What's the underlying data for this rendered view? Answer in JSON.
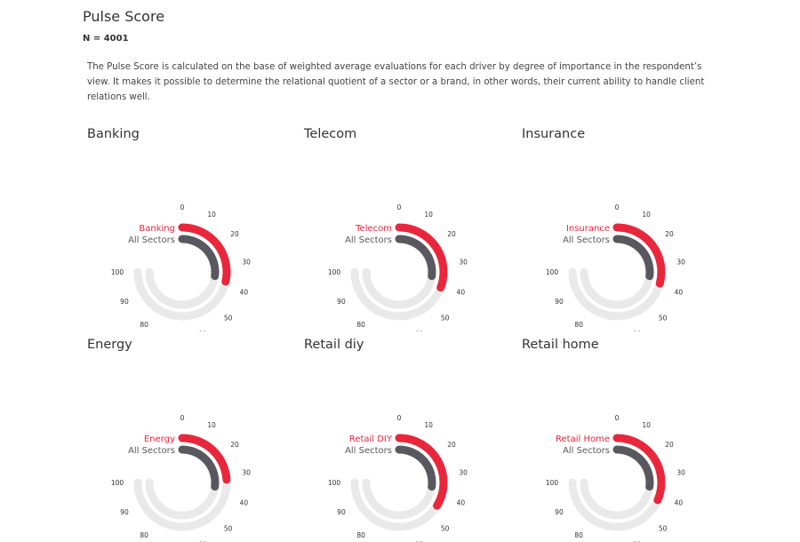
{
  "title": "Pulse Score",
  "n_label": "N = 4001",
  "description": "The Pulse Score is calculated on the base of weighted average evaluations for each driver by degree of importance in the respondent’s view. It makes it possible to determine the relational quotient of a sector or a brand, in other words, their current ability to handle client relations well.",
  "colors": {
    "sector": "#e8273c",
    "all_sectors": "#58585e",
    "track": "#e9e9e9",
    "line": "#e8425a"
  },
  "chart_data": [
    {
      "type": "radial-bar",
      "title": "Banking",
      "scale": [
        0,
        100
      ],
      "ticks": [
        0,
        10,
        20,
        30,
        40,
        50,
        60,
        70,
        80,
        90,
        100
      ],
      "series": [
        {
          "name": "Banking",
          "value": 38
        },
        {
          "name": "All Sectors",
          "value": 36
        }
      ]
    },
    {
      "type": "radial-bar",
      "title": "Telecom",
      "scale": [
        0,
        100
      ],
      "ticks": [
        0,
        10,
        20,
        30,
        40,
        50,
        60,
        70,
        80,
        90,
        100
      ],
      "series": [
        {
          "name": "Telecom",
          "value": 41
        },
        {
          "name": "All Sectors",
          "value": 36
        }
      ]
    },
    {
      "type": "radial-bar",
      "title": "Insurance",
      "scale": [
        0,
        100
      ],
      "ticks": [
        0,
        10,
        20,
        30,
        40,
        50,
        60,
        70,
        80,
        90,
        100
      ],
      "series": [
        {
          "name": "Insurance",
          "value": 39
        },
        {
          "name": "All Sectors",
          "value": 36
        }
      ]
    },
    {
      "type": "radial-bar",
      "title": "Energy",
      "scale": [
        0,
        100
      ],
      "ticks": [
        0,
        10,
        20,
        30,
        40,
        50,
        60,
        70,
        80,
        90,
        100
      ],
      "series": [
        {
          "name": "Energy",
          "value": 32
        },
        {
          "name": "All Sectors",
          "value": 36
        }
      ]
    },
    {
      "type": "radial-bar",
      "title": "Retail diy",
      "scale": [
        0,
        100
      ],
      "ticks": [
        0,
        10,
        20,
        30,
        40,
        50,
        60,
        70,
        80,
        90,
        100
      ],
      "series": [
        {
          "name": "Retail DIY",
          "value": 45
        },
        {
          "name": "All Sectors",
          "value": 36
        }
      ]
    },
    {
      "type": "radial-bar",
      "title": "Retail home",
      "scale": [
        0,
        100
      ],
      "ticks": [
        0,
        10,
        20,
        30,
        40,
        50,
        60,
        70,
        80,
        90,
        100
      ],
      "series": [
        {
          "name": "Retail Home",
          "value": 42
        },
        {
          "name": "All Sectors",
          "value": 36
        }
      ]
    }
  ]
}
